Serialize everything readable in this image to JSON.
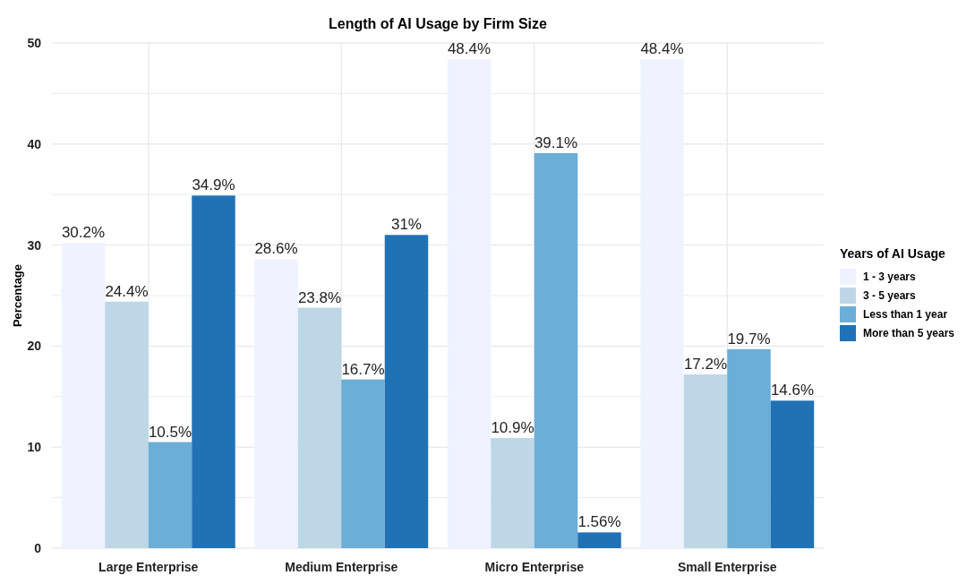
{
  "chart_data": {
    "type": "bar",
    "title": "Length of AI Usage by Firm Size",
    "ylabel": "Percentage",
    "legend_title": "Years of AI Usage",
    "legend": "right",
    "grid": true,
    "categories": [
      "Large Enterprise",
      "Medium Enterprise",
      "Micro Enterprise",
      "Small Enterprise"
    ],
    "ylim": [
      0,
      50
    ],
    "yticks": [
      0,
      {
        "value": 5,
        "label": null
      },
      10,
      {
        "value": 15,
        "label": null
      },
      20,
      {
        "value": 25,
        "label": null
      },
      30,
      {
        "value": 35,
        "label": null
      },
      40,
      {
        "value": 45,
        "label": null
      },
      50
    ],
    "series": [
      {
        "name": "1 - 3 years",
        "color": "#eff3ff",
        "values": [
          30.2,
          28.6,
          48.4,
          48.4
        ],
        "value_labels": [
          "30.2%",
          "28.6%",
          "48.4%",
          "48.4%"
        ]
      },
      {
        "name": "3 - 5 years",
        "color": "#bdd7e7",
        "values": [
          24.4,
          23.8,
          10.9,
          17.2
        ],
        "value_labels": [
          "24.4%",
          "23.8%",
          "10.9%",
          "17.2%"
        ]
      },
      {
        "name": "Less than 1 year",
        "color": "#6baed6",
        "values": [
          10.5,
          16.7,
          39.1,
          19.7
        ],
        "value_labels": [
          "10.5%",
          "16.7%",
          "39.1%",
          "19.7%"
        ]
      },
      {
        "name": "More than 5 years",
        "color": "#2171b5",
        "values": [
          34.9,
          31,
          1.56,
          14.6
        ],
        "value_labels": [
          "34.9%",
          "31%",
          "1.56%",
          "14.6%"
        ]
      }
    ]
  }
}
